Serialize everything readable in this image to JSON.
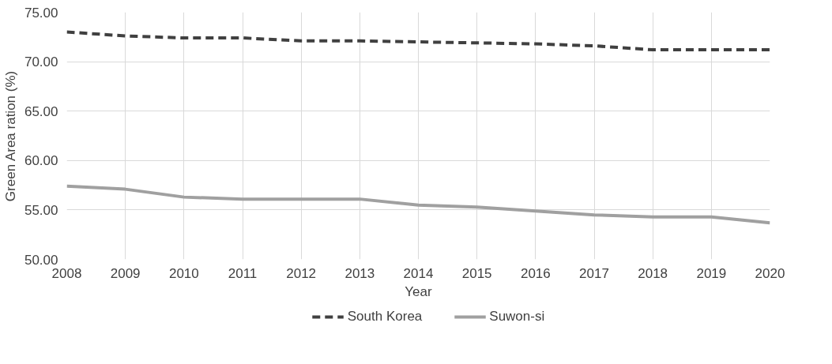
{
  "chart_data": {
    "type": "line",
    "xlabel": "Year",
    "ylabel": "Green Area ration (%)",
    "categories": [
      "2008",
      "2009",
      "2010",
      "2011",
      "2012",
      "2013",
      "2014",
      "2015",
      "2016",
      "2017",
      "2018",
      "2019",
      "2020"
    ],
    "series": [
      {
        "name": "South Korea",
        "color": "#404040",
        "line_style": "dashed",
        "values": [
          73.0,
          72.6,
          72.4,
          72.4,
          72.1,
          72.1,
          72.0,
          71.9,
          71.8,
          71.6,
          71.2,
          71.2,
          71.2
        ]
      },
      {
        "name": "Suwon-si",
        "color": "#a0a0a0",
        "line_style": "solid",
        "values": [
          57.4,
          57.1,
          56.3,
          56.1,
          56.1,
          56.1,
          55.5,
          55.3,
          54.9,
          54.5,
          54.3,
          54.3,
          53.7
        ]
      }
    ],
    "ylim": [
      50,
      75
    ],
    "yticks": [
      {
        "value": 50,
        "label": "50.00"
      },
      {
        "value": 55,
        "label": "55.00"
      },
      {
        "value": 60,
        "label": "60.00"
      },
      {
        "value": 65,
        "label": "65.00"
      },
      {
        "value": 70,
        "label": "70.00"
      },
      {
        "value": 75,
        "label": "75.00"
      }
    ],
    "grid": true,
    "legend": "bottom",
    "marker": "none"
  }
}
